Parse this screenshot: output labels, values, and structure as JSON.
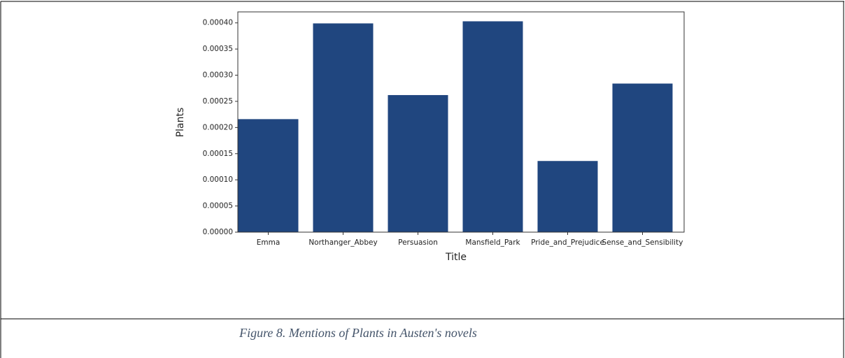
{
  "chart_data": {
    "type": "bar",
    "xlabel": "Title",
    "ylabel": "Plants",
    "categories": [
      "Emma",
      "Northanger_Abbey",
      "Persuasion",
      "Mansfield_Park",
      "Pride_and_Prejudice",
      "Sense_and_Sensibility"
    ],
    "values": [
      0.000216,
      0.000399,
      0.000262,
      0.000403,
      0.000136,
      0.000284
    ],
    "color": "#20467f",
    "ylim": [
      0,
      0.000421
    ],
    "yticks": [
      {
        "value": 0,
        "label": "0.00000"
      },
      {
        "value": 5e-05,
        "label": "0.00005"
      },
      {
        "value": 0.0001,
        "label": "0.00010"
      },
      {
        "value": 0.00015,
        "label": "0.00015"
      },
      {
        "value": 0.0002,
        "label": "0.00020"
      },
      {
        "value": 0.00025,
        "label": "0.00025"
      },
      {
        "value": 0.0003,
        "label": "0.00030"
      },
      {
        "value": 0.00035,
        "label": "0.00035"
      },
      {
        "value": 0.0004,
        "label": "0.00040"
      }
    ]
  },
  "caption": "Figure 8. Mentions of Plants in Austen's novels"
}
